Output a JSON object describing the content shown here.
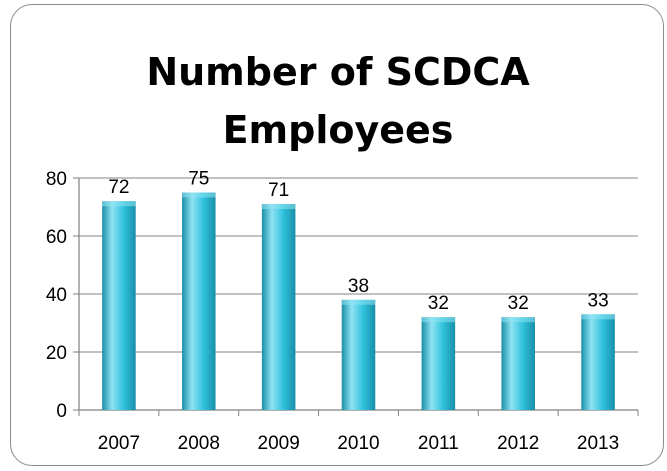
{
  "chart_data": {
    "type": "bar",
    "title": "Number of SCDCA\nEmployees",
    "categories": [
      "2007",
      "2008",
      "2009",
      "2010",
      "2011",
      "2012",
      "2013"
    ],
    "values": [
      72,
      75,
      71,
      38,
      32,
      32,
      33
    ],
    "ylim": [
      0,
      80
    ],
    "yticks": [
      0,
      20,
      40,
      60,
      80
    ],
    "grid": true,
    "legend": "none",
    "colors": {
      "bar_light": "#8fe3f2",
      "bar_mid": "#2ec0dc",
      "bar_dark": "#1a8fa8",
      "grid": "#9c9c9c",
      "axis": "#808080"
    }
  }
}
